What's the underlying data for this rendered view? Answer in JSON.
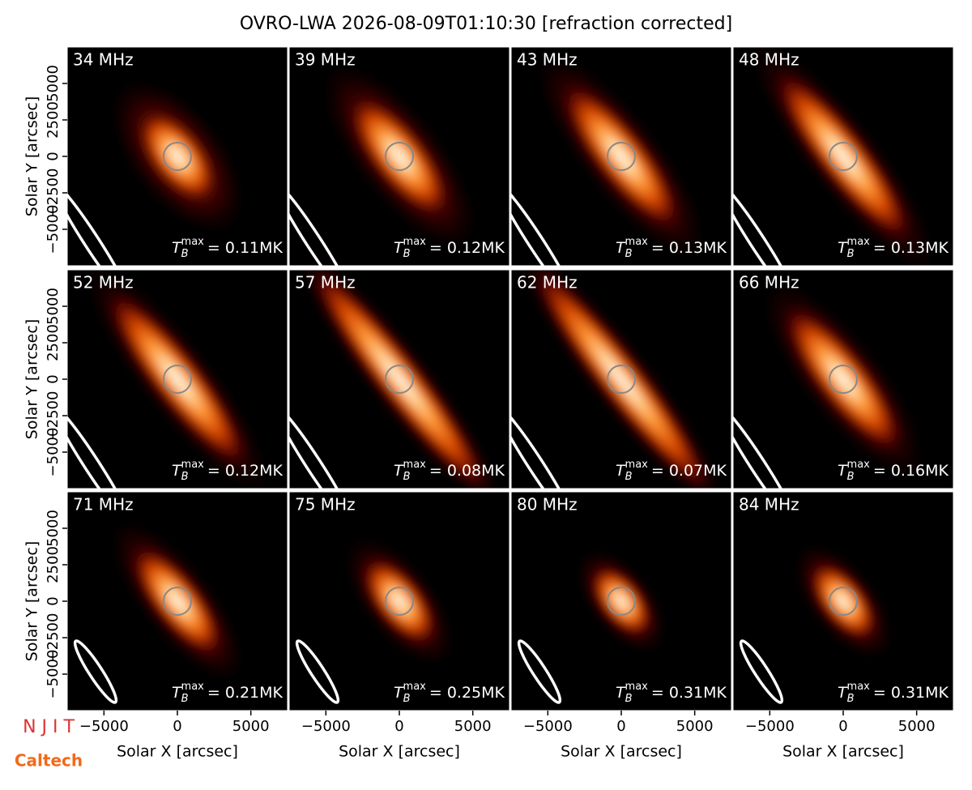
{
  "title": "OVRO-LWA 2026-08-09T01:10:30 [refraction corrected]",
  "logos": {
    "njit": "N J I T",
    "caltech": "Caltech"
  },
  "chart_data": [
    {
      "type": "image",
      "title": "34 MHz",
      "annotation": {
        "symbol": "T",
        "sub": "B",
        "sup": "max",
        "text": "= 0.11MK"
      },
      "xlim": [
        -7500,
        7500
      ],
      "ylim": [
        -7500,
        7500
      ],
      "ylabel": "Solar Y [arcsec]",
      "yticks": [
        {
          "value": -5000,
          "label": "−5000"
        },
        {
          "value": -2500,
          "label": "−2500"
        },
        0,
        2500,
        5000
      ]
    },
    {
      "type": "image",
      "title": "39 MHz",
      "annotation": {
        "symbol": "T",
        "sub": "B",
        "sup": "max",
        "text": "= 0.12MK"
      },
      "xlim": [
        -7500,
        7500
      ],
      "ylim": [
        -7500,
        7500
      ]
    },
    {
      "type": "image",
      "title": "43 MHz",
      "annotation": {
        "symbol": "T",
        "sub": "B",
        "sup": "max",
        "text": "= 0.13MK"
      },
      "xlim": [
        -7500,
        7500
      ],
      "ylim": [
        -7500,
        7500
      ]
    },
    {
      "type": "image",
      "title": "48 MHz",
      "annotation": {
        "symbol": "T",
        "sub": "B",
        "sup": "max",
        "text": "= 0.13MK"
      },
      "xlim": [
        -7500,
        7500
      ],
      "ylim": [
        -7500,
        7500
      ]
    },
    {
      "type": "image",
      "title": "52 MHz",
      "annotation": {
        "symbol": "T",
        "sub": "B",
        "sup": "max",
        "text": "= 0.12MK"
      },
      "xlim": [
        -7500,
        7500
      ],
      "ylim": [
        -7500,
        7500
      ],
      "ylabel": "Solar Y [arcsec]",
      "yticks": [
        {
          "value": -5000,
          "label": "−5000"
        },
        {
          "value": -2500,
          "label": "−2500"
        },
        0,
        2500,
        5000
      ]
    },
    {
      "type": "image",
      "title": "57 MHz",
      "annotation": {
        "symbol": "T",
        "sub": "B",
        "sup": "max",
        "text": "= 0.08MK"
      },
      "xlim": [
        -7500,
        7500
      ],
      "ylim": [
        -7500,
        7500
      ]
    },
    {
      "type": "image",
      "title": "62 MHz",
      "annotation": {
        "symbol": "T",
        "sub": "B",
        "sup": "max",
        "text": "= 0.07MK"
      },
      "xlim": [
        -7500,
        7500
      ],
      "ylim": [
        -7500,
        7500
      ]
    },
    {
      "type": "image",
      "title": "66 MHz",
      "annotation": {
        "symbol": "T",
        "sub": "B",
        "sup": "max",
        "text": "= 0.16MK"
      },
      "xlim": [
        -7500,
        7500
      ],
      "ylim": [
        -7500,
        7500
      ]
    },
    {
      "type": "image",
      "title": "71 MHz",
      "annotation": {
        "symbol": "T",
        "sub": "B",
        "sup": "max",
        "text": "= 0.21MK"
      },
      "xlim": [
        -7500,
        7500
      ],
      "ylim": [
        -7500,
        7500
      ],
      "ylabel": "Solar Y [arcsec]",
      "yticks": [
        {
          "value": -5000,
          "label": "−5000"
        },
        {
          "value": -2500,
          "label": "−2500"
        },
        0,
        2500,
        5000
      ],
      "xlabel": "Solar X [arcsec]",
      "xticks": [
        {
          "value": -5000,
          "label": "−5000"
        },
        0,
        5000
      ]
    },
    {
      "type": "image",
      "title": "75 MHz",
      "annotation": {
        "symbol": "T",
        "sub": "B",
        "sup": "max",
        "text": "= 0.25MK"
      },
      "xlim": [
        -7500,
        7500
      ],
      "ylim": [
        -7500,
        7500
      ],
      "xlabel": "Solar X [arcsec]",
      "xticks": [
        {
          "value": -5000,
          "label": "−5000"
        },
        0,
        5000
      ]
    },
    {
      "type": "image",
      "title": "80 MHz",
      "annotation": {
        "symbol": "T",
        "sub": "B",
        "sup": "max",
        "text": "= 0.31MK"
      },
      "xlim": [
        -7500,
        7500
      ],
      "ylim": [
        -7500,
        7500
      ],
      "xlabel": "Solar X [arcsec]",
      "xticks": [
        {
          "value": -5000,
          "label": "−5000"
        },
        0,
        5000
      ]
    },
    {
      "type": "image",
      "title": "84 MHz",
      "annotation": {
        "symbol": "T",
        "sub": "B",
        "sup": "max",
        "text": "= 0.31MK"
      },
      "xlim": [
        -7500,
        7500
      ],
      "ylim": [
        -7500,
        7500
      ],
      "xlabel": "Solar X [arcsec]",
      "xticks": [
        {
          "value": -5000,
          "label": "−5000"
        },
        0,
        5000
      ]
    }
  ]
}
